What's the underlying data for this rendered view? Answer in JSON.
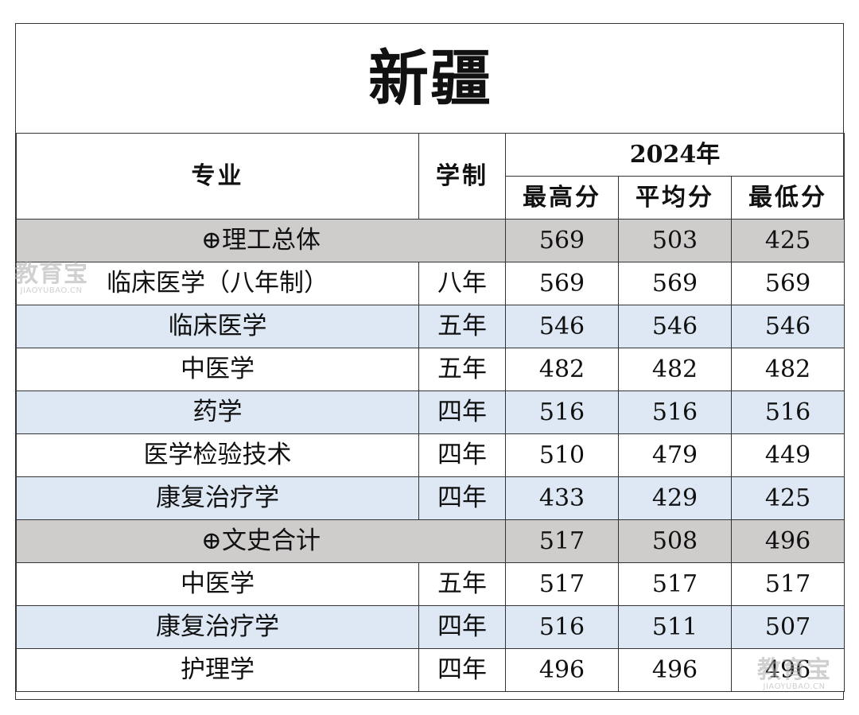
{
  "title": "新疆",
  "header": {
    "major": "专业",
    "duration": "学制",
    "year": "2024年",
    "max": "最高分",
    "avg": "平均分",
    "min": "最低分"
  },
  "rows": [
    {
      "type": "group",
      "major": "⊕理工总体",
      "duration": "",
      "max": "569",
      "avg": "503",
      "min": "425"
    },
    {
      "type": "plain",
      "major": "临床医学（八年制）",
      "duration": "八年",
      "max": "569",
      "avg": "569",
      "min": "569"
    },
    {
      "type": "alt",
      "major": "临床医学",
      "duration": "五年",
      "max": "546",
      "avg": "546",
      "min": "546"
    },
    {
      "type": "plain",
      "major": "中医学",
      "duration": "五年",
      "max": "482",
      "avg": "482",
      "min": "482"
    },
    {
      "type": "alt",
      "major": "药学",
      "duration": "四年",
      "max": "516",
      "avg": "516",
      "min": "516"
    },
    {
      "type": "plain",
      "major": "医学检验技术",
      "duration": "四年",
      "max": "510",
      "avg": "479",
      "min": "449"
    },
    {
      "type": "alt",
      "major": "康复治疗学",
      "duration": "四年",
      "max": "433",
      "avg": "429",
      "min": "425"
    },
    {
      "type": "group",
      "major": "⊕文史合计",
      "duration": "",
      "max": "517",
      "avg": "508",
      "min": "496"
    },
    {
      "type": "plain",
      "major": "中医学",
      "duration": "五年",
      "max": "517",
      "avg": "517",
      "min": "517"
    },
    {
      "type": "alt",
      "major": "康复治疗学",
      "duration": "四年",
      "max": "516",
      "avg": "511",
      "min": "507"
    },
    {
      "type": "plain",
      "major": "护理学",
      "duration": "四年",
      "max": "496",
      "avg": "496",
      "min": "496"
    }
  ],
  "watermark": {
    "text": "教育宝",
    "domain": "JIAOYUBAO.CN"
  },
  "colors": {
    "group_bg": "#cfcccc",
    "alt_bg": "#dde8f4",
    "border": "#333333"
  }
}
